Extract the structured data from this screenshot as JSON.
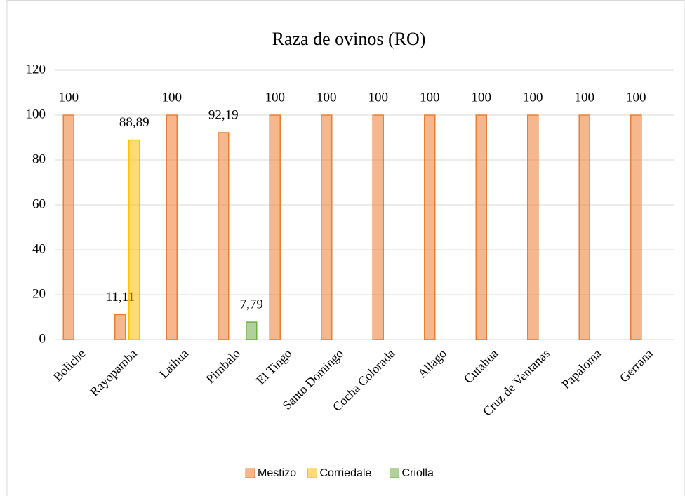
{
  "chart_data": {
    "type": "bar",
    "title": "Raza de ovinos (RO)",
    "categories": [
      "Boliche",
      "Rayopamba",
      "Laihua",
      "Pimbalo",
      "El Tingo",
      "Santo Domingo",
      "Cocha Colorada",
      "Allago",
      "Cutahua",
      "Cruz de Ventanas",
      "Papaloma",
      "Gerrana"
    ],
    "series": [
      {
        "name": "Mestizo",
        "color": "#ed7d31",
        "values": [
          100,
          11.11,
          100,
          92.19,
          100,
          100,
          100,
          100,
          100,
          100,
          100,
          100
        ],
        "value_labels": [
          "100",
          "11,11",
          "100",
          "92,19",
          "100",
          "100",
          "100",
          "100",
          "100",
          "100",
          "100",
          "100"
        ]
      },
      {
        "name": "Corriedale",
        "color": "#ffc000",
        "values": [
          null,
          88.89,
          null,
          null,
          null,
          null,
          null,
          null,
          null,
          null,
          null,
          null
        ],
        "value_labels": [
          null,
          "88,89",
          null,
          null,
          null,
          null,
          null,
          null,
          null,
          null,
          null,
          null
        ]
      },
      {
        "name": "Criolla",
        "color": "#70ad47",
        "values": [
          null,
          null,
          null,
          7.79,
          null,
          null,
          null,
          null,
          null,
          null,
          null,
          null
        ],
        "value_labels": [
          null,
          null,
          null,
          "7,79",
          null,
          null,
          null,
          null,
          null,
          null,
          null,
          null
        ]
      }
    ],
    "ylim": [
      0,
      120
    ],
    "yticks": [
      0,
      20,
      40,
      60,
      80,
      100,
      120
    ],
    "grid": true,
    "legend": "bottom"
  }
}
